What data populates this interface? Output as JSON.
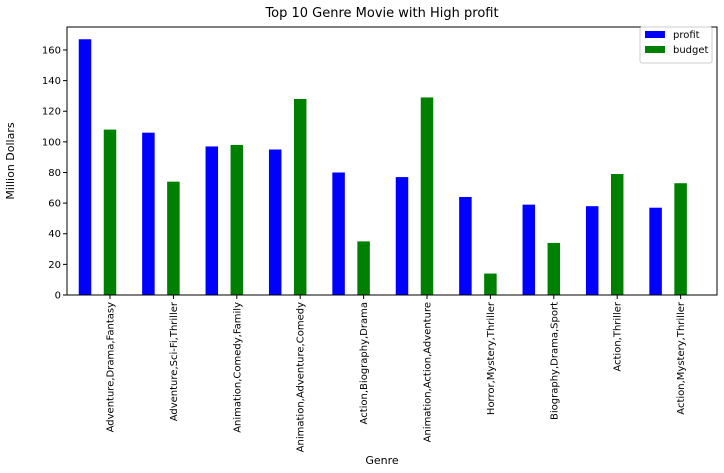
{
  "chart_data": {
    "type": "bar",
    "title": "Top 10 Genre Movie with High profit",
    "xlabel": "Genre",
    "ylabel": "Million Dollars",
    "ylim": [
      0,
      175
    ],
    "yticks": [
      0,
      20,
      40,
      60,
      80,
      100,
      120,
      140,
      160
    ],
    "grid": false,
    "legend_position": "top-right",
    "categories": [
      "Adventure,Drama,Fantasy",
      "Adventure,Sci-Fi,Thriller",
      "Animation,Comedy,Family",
      "Animation,Adventure,Comedy",
      "Action,Biography,Drama",
      "Animation,Action,Adventure",
      "Horror,Mystery,Thriller",
      "Biography,Drama,Sport",
      "Action,Thriller",
      "Action,Mystery,Thriller"
    ],
    "series": [
      {
        "name": "profit",
        "color": "#0000ff",
        "values": [
          167,
          106,
          97,
          95,
          80,
          77,
          64,
          59,
          58,
          57
        ]
      },
      {
        "name": "budget",
        "color": "#008000",
        "values": [
          108,
          74,
          98,
          128,
          35,
          129,
          14,
          34,
          79,
          73
        ]
      }
    ]
  }
}
